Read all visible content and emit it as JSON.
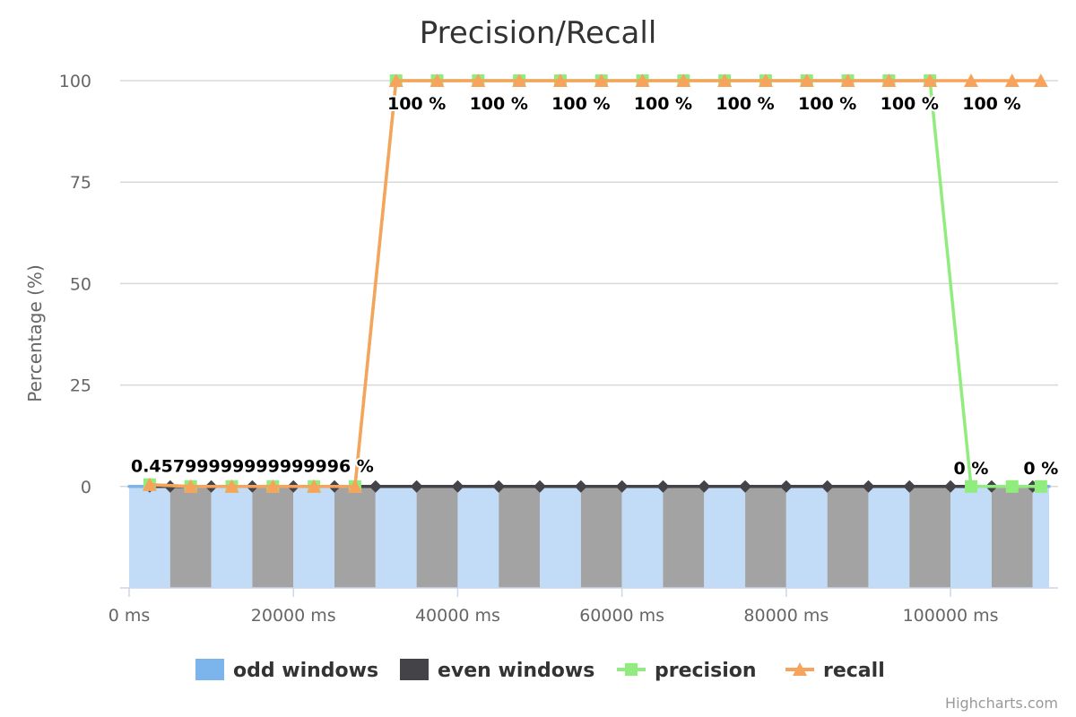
{
  "chart_data": {
    "type": "line",
    "title": "Precision/Recall",
    "ylabel": "Percentage (%)",
    "xlabel": "",
    "xlim": [
      0,
      112000
    ],
    "ylim": [
      -25,
      100
    ],
    "y_ticks": [
      0,
      25,
      50,
      75,
      100
    ],
    "y_tick_labels": [
      "0",
      "25",
      "50",
      "75",
      "100"
    ],
    "x_ticks": [
      0,
      20000,
      40000,
      60000,
      80000,
      100000
    ],
    "x_tick_labels": [
      "0 ms",
      "20000 ms",
      "40000 ms",
      "60000 ms",
      "80000 ms",
      "100000 ms"
    ],
    "grid": "horizontal",
    "legend_position": "bottom",
    "window_bands": {
      "width": 5000,
      "starts": [
        0,
        5000,
        10000,
        15000,
        20000,
        25000,
        30000,
        35000,
        40000,
        45000,
        50000,
        55000,
        60000,
        65000,
        70000,
        75000,
        80000,
        85000,
        90000,
        95000,
        100000,
        105000,
        110000
      ],
      "end": 112000,
      "min": -25,
      "odd_color": "#c2dbf6",
      "even_color": "#a3a3a4"
    },
    "series": [
      {
        "name": "odd windows",
        "color": "#7cb5ec",
        "marker": "none",
        "x": [
          0,
          112000
        ],
        "values": [
          0,
          0
        ]
      },
      {
        "name": "even windows",
        "color": "#434348",
        "marker": "diamond",
        "x": [
          2500,
          5000,
          10000,
          15000,
          20000,
          25000,
          30000,
          35000,
          40000,
          45000,
          50000,
          55000,
          60000,
          65000,
          70000,
          75000,
          80000,
          85000,
          90000,
          95000,
          100000,
          105000,
          110000
        ],
        "values": [
          0,
          0,
          0,
          0,
          0,
          0,
          0,
          0,
          0,
          0,
          0,
          0,
          0,
          0,
          0,
          0,
          0,
          0,
          0,
          0,
          0,
          0,
          0
        ]
      },
      {
        "name": "precision",
        "color": "#90ed7d",
        "marker": "square",
        "x": [
          2500,
          7500,
          12500,
          17500,
          22500,
          27500,
          32500,
          37500,
          42500,
          47500,
          52500,
          57500,
          62500,
          67500,
          72500,
          77500,
          82500,
          87500,
          92500,
          97500,
          102500,
          107500,
          111000
        ],
        "values": [
          0.458,
          0,
          0,
          0,
          0,
          0,
          100,
          100,
          100,
          100,
          100,
          100,
          100,
          100,
          100,
          100,
          100,
          100,
          100,
          100,
          0,
          0,
          0
        ]
      },
      {
        "name": "recall",
        "color": "#f7a35c",
        "marker": "triangle",
        "x": [
          2500,
          7500,
          12500,
          17500,
          22500,
          27500,
          32500,
          37500,
          42500,
          47500,
          52500,
          57500,
          62500,
          67500,
          72500,
          77500,
          82500,
          87500,
          92500,
          97500,
          102500,
          107500,
          111000
        ],
        "values": [
          0.458,
          0,
          0,
          0,
          0,
          0,
          100,
          100,
          100,
          100,
          100,
          100,
          100,
          100,
          100,
          100,
          100,
          100,
          100,
          100,
          100,
          100,
          100
        ]
      }
    ],
    "data_labels": [
      {
        "x": 15000,
        "y": 0.458,
        "text": "0.45799999999999996 %"
      },
      {
        "x": 35000,
        "y": 100,
        "text": "100 %"
      },
      {
        "x": 45000,
        "y": 100,
        "text": "100 %"
      },
      {
        "x": 55000,
        "y": 100,
        "text": "100 %"
      },
      {
        "x": 65000,
        "y": 100,
        "text": "100 %"
      },
      {
        "x": 75000,
        "y": 100,
        "text": "100 %"
      },
      {
        "x": 85000,
        "y": 100,
        "text": "100 %"
      },
      {
        "x": 95000,
        "y": 100,
        "text": "100 %"
      },
      {
        "x": 105000,
        "y": 100,
        "text": "100 %"
      },
      {
        "x": 102500,
        "y": 0,
        "text": "0 %"
      },
      {
        "x": 111000,
        "y": 0,
        "text": "0 %"
      }
    ],
    "credits": "Highcharts.com"
  }
}
